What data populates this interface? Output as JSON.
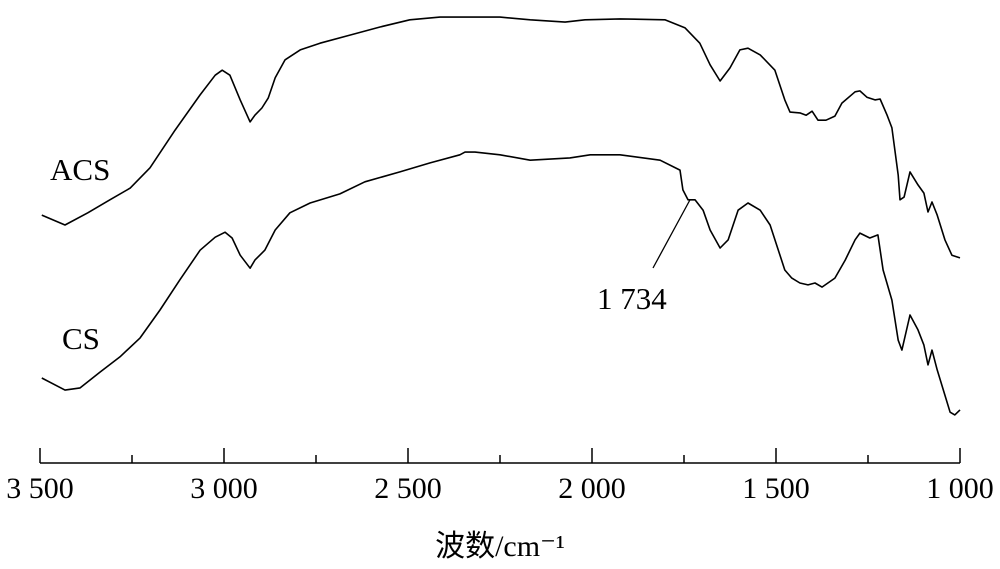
{
  "chart_data": {
    "type": "line",
    "title": "",
    "xlabel": "波数/cm⁻¹",
    "ylabel": "",
    "xlim": [
      3500,
      1000
    ],
    "x_reversed": true,
    "y_axis_shown": false,
    "grid": false,
    "x_ticks": [
      3500,
      3000,
      2500,
      2000,
      1500,
      1000
    ],
    "x_tick_labels": [
      "3 500",
      "3 000",
      "2 500",
      "2 000",
      "1 500",
      "1 000"
    ],
    "x_minor_ticks": [
      3250,
      2750,
      2250,
      1750,
      1250
    ],
    "line_color": "#000000",
    "series": [
      {
        "name": "ACS",
        "x": [
          3495,
          3432,
          3370,
          3310,
          3255,
          3201,
          3133,
          3065,
          3024,
          3005,
          2984,
          2956,
          2929,
          2916,
          2897,
          2880,
          2861,
          2834,
          2793,
          2739,
          2658,
          2576,
          2495,
          2413,
          2332,
          2250,
          2168,
          2073,
          2019,
          1924,
          1802,
          1747,
          1707,
          1679,
          1652,
          1625,
          1598,
          1576,
          1543,
          1503,
          1476,
          1462,
          1435,
          1418,
          1402,
          1386,
          1364,
          1340,
          1321,
          1285,
          1272,
          1253,
          1231,
          1217,
          1198,
          1185,
          1168,
          1163,
          1152,
          1136,
          1114,
          1098,
          1087,
          1076,
          1062,
          1041,
          1022,
          1000
        ],
        "y": [
          52.2,
          50,
          52.7,
          55.6,
          58.2,
          62.7,
          71.1,
          78.9,
          83.3,
          84.4,
          83.3,
          77.8,
          72.9,
          74.4,
          76,
          78.2,
          82.7,
          86.7,
          88.9,
          90.4,
          92.2,
          94,
          95.6,
          96.2,
          96.2,
          96.2,
          95.6,
          95.1,
          95.6,
          95.8,
          95.6,
          93.8,
          90.4,
          85.6,
          82,
          84.9,
          88.9,
          89.3,
          87.8,
          84.4,
          77.8,
          75.1,
          74.9,
          74.4,
          75.3,
          73.3,
          73.3,
          74.2,
          77.1,
          79.6,
          79.8,
          78.4,
          77.8,
          78,
          74.4,
          71.6,
          61.1,
          55.6,
          56.2,
          61.8,
          58.9,
          57.1,
          52.9,
          55.1,
          52.2,
          46.7,
          43.3,
          42.7
        ]
      },
      {
        "name": "CS",
        "x": [
          3495,
          3432,
          3391,
          3337,
          3283,
          3228,
          3174,
          3120,
          3065,
          3024,
          2997,
          2978,
          2956,
          2929,
          2916,
          2889,
          2861,
          2821,
          2766,
          2685,
          2617,
          2522,
          2440,
          2359,
          2345,
          2318,
          2250,
          2168,
          2060,
          2005,
          1924,
          1815,
          1761,
          1753,
          1739,
          1720,
          1698,
          1679,
          1652,
          1630,
          1603,
          1576,
          1543,
          1516,
          1476,
          1457,
          1435,
          1413,
          1394,
          1375,
          1340,
          1312,
          1285,
          1272,
          1245,
          1223,
          1209,
          1185,
          1168,
          1158,
          1136,
          1114,
          1098,
          1087,
          1076,
          1062,
          1041,
          1027,
          1014,
          1000
        ],
        "y": [
          16,
          13.3,
          13.8,
          17.3,
          20.7,
          24.9,
          31.1,
          37.8,
          44.4,
          47.3,
          48.4,
          47.1,
          43.3,
          40.4,
          42.2,
          44.4,
          48.9,
          52.7,
          54.9,
          56.9,
          59.6,
          61.8,
          63.8,
          65.6,
          66.2,
          66.2,
          65.6,
          64.4,
          64.9,
          65.6,
          65.6,
          64.4,
          62.2,
          57.8,
          55.6,
          55.6,
          53.3,
          48.9,
          44.9,
          46.7,
          53.3,
          54.9,
          53.3,
          50,
          40,
          38.2,
          37.1,
          36.7,
          37.1,
          36.2,
          38.2,
          42.2,
          46.7,
          48.2,
          47.1,
          47.8,
          40,
          33.3,
          24.4,
          22.2,
          30,
          26.7,
          23.3,
          18.9,
          22.2,
          17.8,
          12.2,
          8.4,
          7.8,
          8.9
        ]
      }
    ],
    "annotations": [
      {
        "text": "1 734",
        "x": 1734,
        "series": "CS"
      }
    ]
  }
}
